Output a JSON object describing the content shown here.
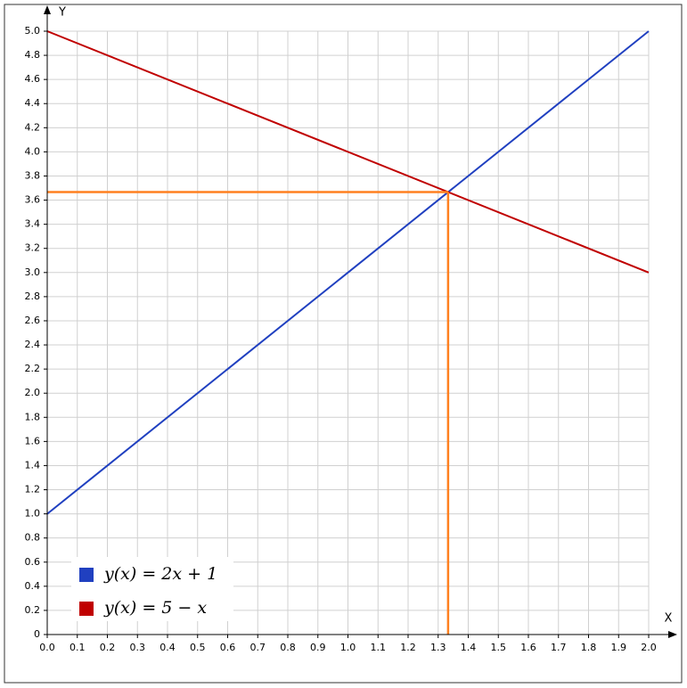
{
  "chart_data": {
    "type": "line",
    "x_label": "X",
    "y_label": "Y",
    "x": [
      0,
      2
    ],
    "series": [
      {
        "name": "y(x) = 2x + 1",
        "color": "#2040c0",
        "values": [
          1,
          5
        ]
      },
      {
        "name": "y(x) = 5 − x",
        "color": "#c00000",
        "values": [
          5,
          3
        ]
      }
    ],
    "xlim": [
      0,
      2
    ],
    "ylim": [
      0,
      5
    ],
    "xticks": [
      {
        "value": 0,
        "label": "0.0"
      },
      0.1,
      0.2,
      0.3,
      0.4,
      0.5,
      0.6,
      0.7,
      0.8,
      0.9,
      {
        "value": 1,
        "label": "1.0"
      },
      1.1,
      1.2,
      1.3,
      1.4,
      1.5,
      1.6,
      1.7,
      1.8,
      1.9,
      {
        "value": 2,
        "label": "2.0"
      }
    ],
    "yticks": [
      0,
      0.2,
      0.4,
      0.6,
      0.8,
      {
        "value": 1,
        "label": "1.0"
      },
      1.2,
      1.4,
      1.6,
      1.8,
      {
        "value": 2,
        "label": "2.0"
      },
      2.2,
      2.4,
      2.6,
      2.8,
      {
        "value": 3,
        "label": "3.0"
      },
      3.2,
      3.4,
      3.6,
      3.8,
      {
        "value": 4,
        "label": "4.0"
      },
      4.2,
      4.4,
      4.6,
      4.8,
      {
        "value": 5,
        "label": "5.0"
      }
    ],
    "grid": true,
    "legend": "lower left",
    "intersection": {
      "x": 1.333,
      "y": 3.667,
      "color": "#ff8020"
    }
  }
}
